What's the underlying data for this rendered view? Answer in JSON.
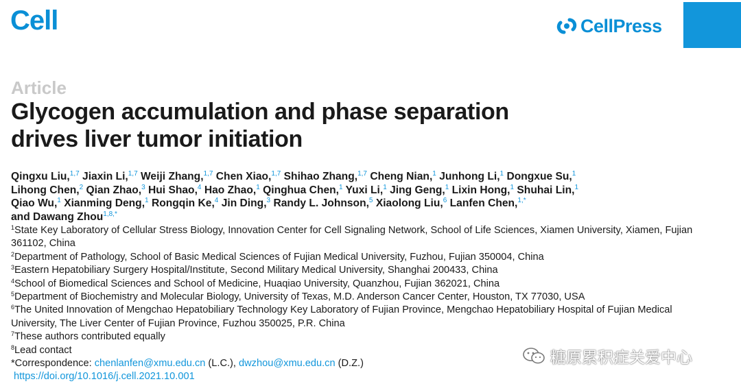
{
  "header": {
    "journal": "Cell",
    "publisher": "CellPress",
    "brand_color": "#0a8fd6",
    "publisher_icon": "cellpress-logo-icon"
  },
  "article": {
    "type": "Article",
    "title_line1": "Glycogen accumulation and phase separation",
    "title_line2": "drives liver tumor initiation"
  },
  "authors": [
    {
      "name": "Qingxu Liu,",
      "aff": "1,7"
    },
    {
      "name": "Jiaxin Li,",
      "aff": "1,7"
    },
    {
      "name": "Weiji Zhang,",
      "aff": "1,7"
    },
    {
      "name": "Chen Xiao,",
      "aff": "1,7"
    },
    {
      "name": "Shihao Zhang,",
      "aff": "1,7"
    },
    {
      "name": "Cheng Nian,",
      "aff": "1"
    },
    {
      "name": "Junhong Li,",
      "aff": "1"
    },
    {
      "name": "Dongxue Su,",
      "aff": "1"
    },
    {
      "name": "Lihong Chen,",
      "aff": "2"
    },
    {
      "name": "Qian Zhao,",
      "aff": "3"
    },
    {
      "name": "Hui Shao,",
      "aff": "4"
    },
    {
      "name": "Hao Zhao,",
      "aff": "1"
    },
    {
      "name": "Qinghua Chen,",
      "aff": "1"
    },
    {
      "name": "Yuxi Li,",
      "aff": "1"
    },
    {
      "name": "Jing Geng,",
      "aff": "1"
    },
    {
      "name": "Lixin Hong,",
      "aff": "1"
    },
    {
      "name": "Shuhai Lin,",
      "aff": "1"
    },
    {
      "name": "Qiao Wu,",
      "aff": "1"
    },
    {
      "name": "Xianming Deng,",
      "aff": "1"
    },
    {
      "name": "Rongqin Ke,",
      "aff": "4"
    },
    {
      "name": "Jin Ding,",
      "aff": "3"
    },
    {
      "name": "Randy L. Johnson,",
      "aff": "5"
    },
    {
      "name": "Xiaolong Liu,",
      "aff": "6"
    },
    {
      "name": "Lanfen Chen,",
      "aff": "1,*"
    },
    {
      "name": "and Dawang Zhou",
      "aff": "1,8,*"
    }
  ],
  "affiliations": [
    {
      "num": "1",
      "text": "State Key Laboratory of Cellular Stress Biology, Innovation Center for Cell Signaling Network, School of Life Sciences, Xiamen University, Xiamen, Fujian 361102, China"
    },
    {
      "num": "2",
      "text": "Department of Pathology, School of Basic Medical Sciences of Fujian Medical University, Fuzhou, Fujian 350004, China"
    },
    {
      "num": "3",
      "text": "Eastern Hepatobiliary Surgery Hospital/Institute, Second Military Medical University, Shanghai 200433, China"
    },
    {
      "num": "4",
      "text": "School of Biomedical Sciences and School of Medicine, Huaqiao University, Quanzhou, Fujian 362021, China"
    },
    {
      "num": "5",
      "text": "Department of Biochemistry and Molecular Biology, University of Texas, M.D. Anderson Cancer Center, Houston, TX 77030, USA"
    },
    {
      "num": "6",
      "text": "The United Innovation of Mengchao Hepatobiliary Technology Key Laboratory of Fujian Province, Mengchao Hepatobiliary Hospital of Fujian Medical University, The Liver Center of Fujian Province, Fuzhou 350025, P.R. China"
    },
    {
      "num": "7",
      "text": "These authors contributed equally"
    },
    {
      "num": "8",
      "text": "Lead contact"
    }
  ],
  "correspondence": {
    "prefix": "*Correspondence: ",
    "email1": "chenlanfen@xmu.edu.cn",
    "initials1": " (L.C.), ",
    "email2": "dwzhou@xmu.edu.cn",
    "initials2": " (D.Z.)"
  },
  "doi": "https://doi.org/10.1016/j.cell.2021.10.001",
  "watermark": {
    "text": "糖原累积症关爱中心",
    "icon": "wechat-icon"
  }
}
